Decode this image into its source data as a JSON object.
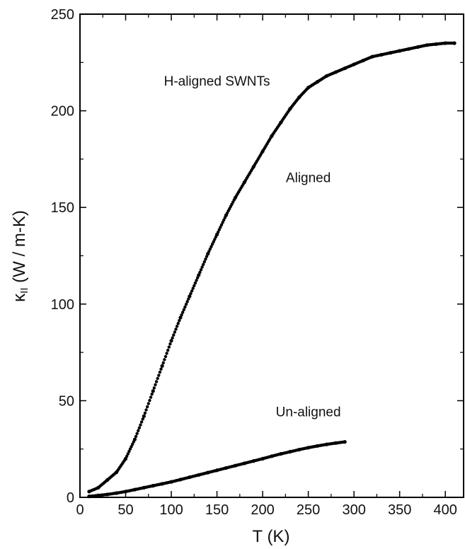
{
  "chart_data": {
    "type": "scatter",
    "title": "",
    "xlabel": "T (K)",
    "ylabel_main": "κ",
    "ylabel_sub": "II",
    "ylabel_rest": " (W / m-K)",
    "xlim": [
      0,
      420
    ],
    "ylim": [
      0,
      250
    ],
    "xticks": [
      0,
      50,
      100,
      150,
      200,
      250,
      300,
      350,
      400
    ],
    "yticks": [
      0,
      50,
      100,
      150,
      200,
      250
    ],
    "grid": false,
    "legend": "none",
    "annotations": [
      {
        "id": "sample",
        "text": "H-aligned SWNTs",
        "x": 150,
        "y": 213
      },
      {
        "id": "aligned",
        "text": "Aligned",
        "x": 250,
        "y": 163
      },
      {
        "id": "unaligned",
        "text": "Un-aligned",
        "x": 250,
        "y": 42
      }
    ],
    "series": [
      {
        "id": "aligned",
        "x": [
          10,
          20,
          30,
          40,
          50,
          60,
          70,
          80,
          90,
          100,
          110,
          120,
          130,
          140,
          150,
          160,
          170,
          180,
          190,
          200,
          210,
          220,
          230,
          240,
          250,
          260,
          270,
          280,
          290,
          300,
          310,
          320,
          330,
          340,
          350,
          360,
          370,
          380,
          390,
          400,
          410
        ],
        "y": [
          3,
          5,
          9,
          13,
          20,
          30,
          42,
          55,
          68,
          81,
          93,
          104,
          115,
          126,
          136,
          146,
          155,
          163,
          171,
          179,
          187,
          194,
          201,
          207,
          212,
          215,
          218,
          220,
          222,
          224,
          226,
          228,
          229,
          230,
          231,
          232,
          233,
          234,
          234.5,
          235,
          235
        ]
      },
      {
        "id": "unaligned",
        "x": [
          10,
          20,
          30,
          40,
          50,
          60,
          70,
          80,
          90,
          100,
          110,
          120,
          130,
          140,
          150,
          160,
          170,
          180,
          190,
          200,
          210,
          220,
          230,
          240,
          250,
          260,
          270,
          280,
          290
        ],
        "y": [
          0.5,
          1,
          1.5,
          2.2,
          3,
          4,
          5,
          6,
          7,
          8,
          9.2,
          10.4,
          11.6,
          12.8,
          14,
          15.2,
          16.4,
          17.6,
          18.8,
          20,
          21.3,
          22.5,
          23.6,
          24.7,
          25.7,
          26.6,
          27.4,
          28.1,
          28.7
        ]
      }
    ]
  }
}
